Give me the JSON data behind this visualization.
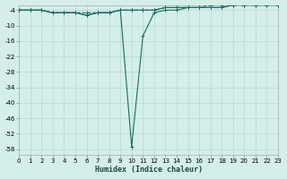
{
  "xlabel": "Humidex (Indice chaleur)",
  "background_color": "#d4eeea",
  "grid_color": "#b8d8d4",
  "line_color": "#1a6b60",
  "ylim": [
    -60,
    -2
  ],
  "yticks": [
    -4,
    -10,
    -16,
    -22,
    -28,
    -34,
    -40,
    -46,
    -52,
    -58
  ],
  "xlim": [
    0,
    23
  ],
  "xticks": [
    0,
    1,
    2,
    3,
    4,
    5,
    6,
    7,
    8,
    9,
    10,
    11,
    12,
    13,
    14,
    15,
    16,
    17,
    18,
    19,
    20,
    21,
    22,
    23
  ],
  "hours": [
    0,
    1,
    2,
    3,
    4,
    5,
    6,
    7,
    8,
    9,
    10,
    11,
    12,
    13,
    14,
    15,
    16,
    17,
    18,
    19,
    20,
    21,
    22,
    23
  ],
  "line1": [
    -4,
    -4,
    -4,
    -5,
    -5,
    -5,
    -6,
    -5,
    -5,
    -4,
    -4,
    -4,
    -4,
    -3,
    -3,
    -3,
    -3,
    -3,
    -3,
    -2,
    -2,
    -2,
    -2,
    -2
  ],
  "line2": [
    -4,
    -4,
    -4,
    -5,
    -5,
    -5,
    -6,
    -5,
    -5,
    -4,
    -57,
    -14,
    -5,
    -4,
    -4,
    -3,
    -3,
    -3,
    -3,
    -2,
    -2,
    -2,
    -2,
    -2
  ],
  "line3": [
    -4,
    -4,
    -4,
    -5,
    -5,
    -5,
    -5,
    -5,
    -5,
    -4,
    -4,
    -4,
    -4,
    -3,
    -3,
    -3,
    -3,
    -2,
    -2,
    -2,
    -2,
    -2,
    -2,
    -2
  ]
}
